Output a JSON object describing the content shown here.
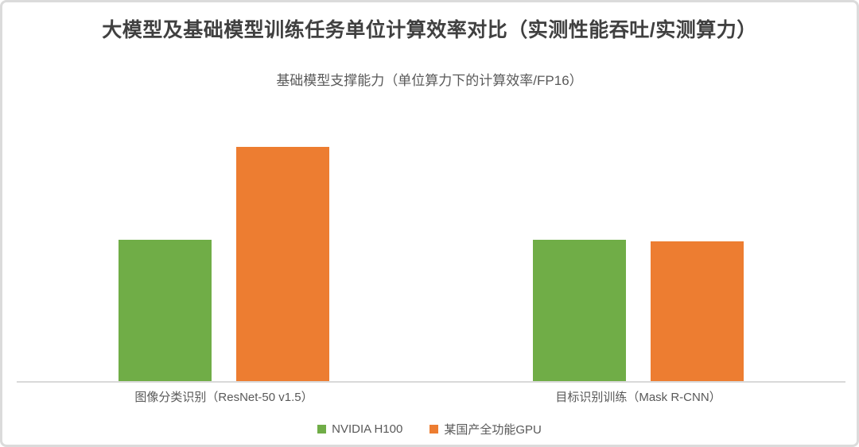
{
  "header": {
    "title": "大模型及基础模型训练任务单位计算效率对比（实测性能吞吐/实测算力）",
    "subtitle": "基础模型支撑能力（单位算力下的计算效率/FP16）"
  },
  "chart_data": {
    "type": "bar",
    "title": "大模型及基础模型训练任务单位计算效率对比（实测性能吞吐/实测算力）",
    "subtitle": "基础模型支撑能力（单位算力下的计算效率/FP16）",
    "categories": [
      "图像分类识别（ResNet-50 v1.5）",
      "目标识别训练（Mask R-CNN）"
    ],
    "series": [
      {
        "name": "NVIDIA H100",
        "color": "#70AD47",
        "values": [
          1.0,
          1.0
        ]
      },
      {
        "name": "某国产全功能GPU",
        "color": "#ED7D31",
        "values": [
          1.66,
          0.99
        ]
      }
    ],
    "ylim": [
      0,
      2
    ],
    "xlabel": "",
    "ylabel": "",
    "y_axis_visible": false,
    "gridlines": false,
    "data_labels_visible": false,
    "legend_position": "bottom",
    "axis_line_color": "#D9D9D9"
  },
  "colors": {
    "title_text": "#404040",
    "secondary_text": "#595959",
    "frame_border": "#DBDBDB",
    "background": "#FFFFFF"
  }
}
